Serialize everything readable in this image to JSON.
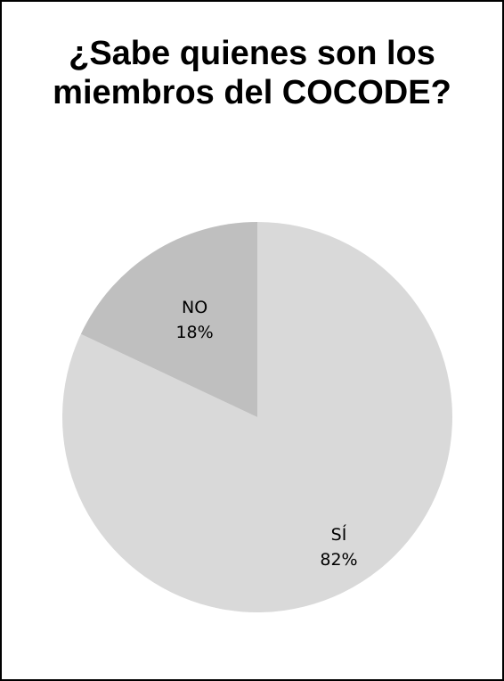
{
  "chart_data": {
    "type": "pie",
    "title": "¿Sabe quienes son los miembros del COCODE?",
    "categories": [
      "SÍ",
      "NO"
    ],
    "values": [
      82,
      18
    ],
    "value_labels": [
      "82%",
      "18%"
    ],
    "colors": [
      "#d9d9d9",
      "#bfbfbf"
    ],
    "legend": "none"
  }
}
